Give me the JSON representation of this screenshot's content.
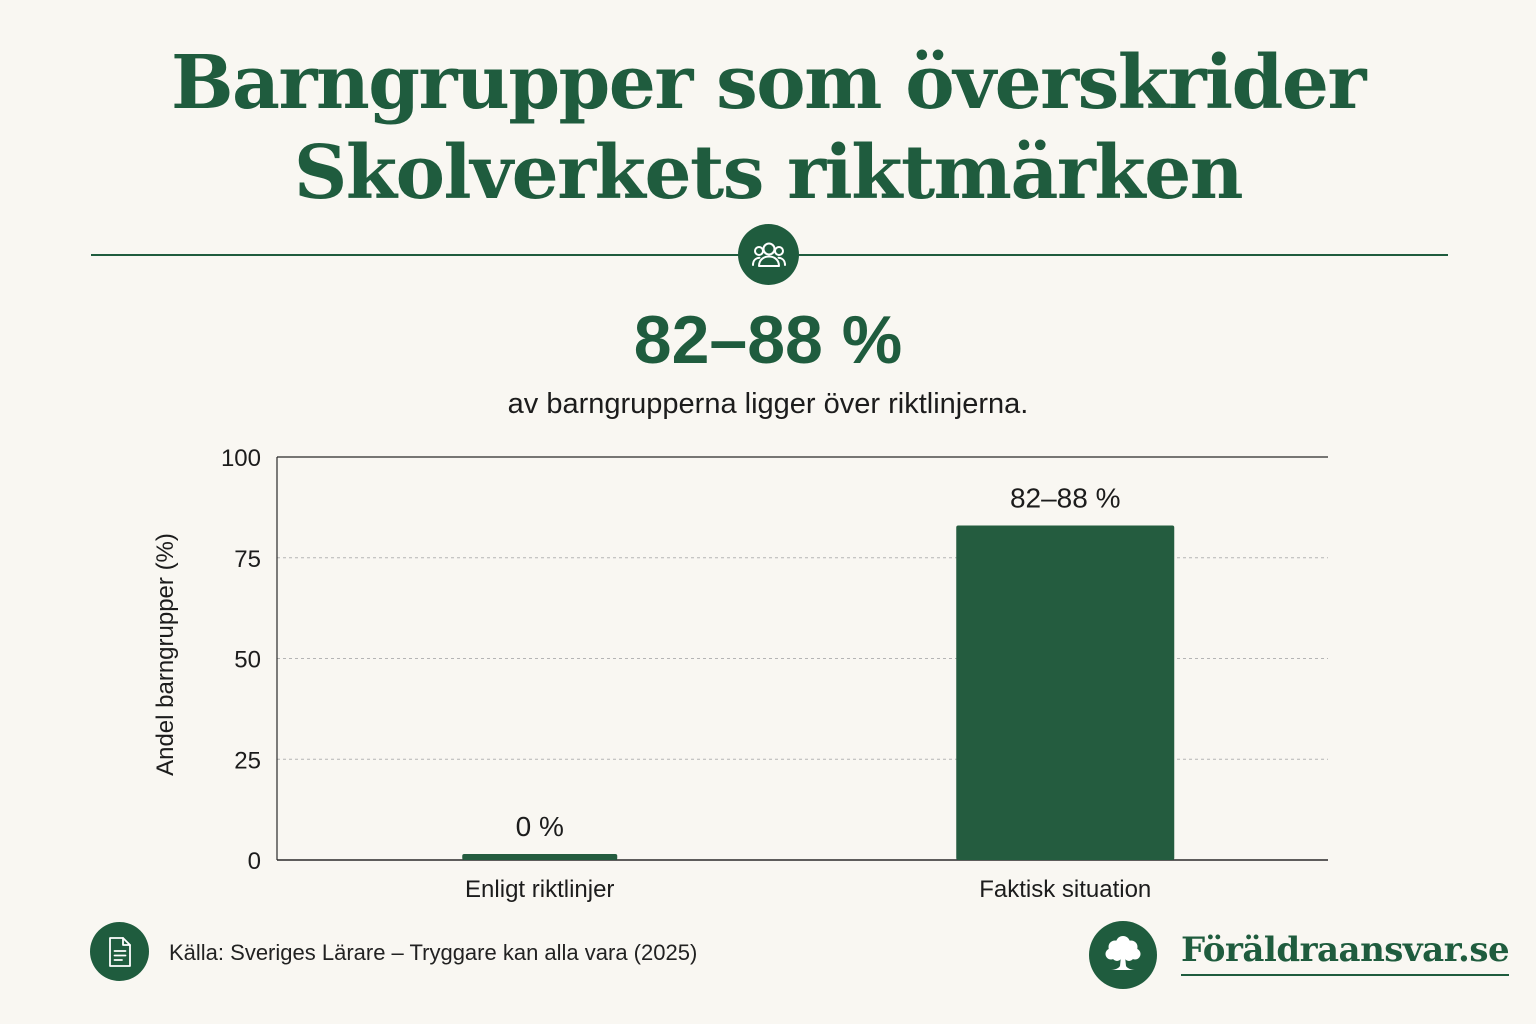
{
  "colors": {
    "brand_green": "#1f5c3e",
    "bar_green": "#245c3f",
    "background": "#f9f7f2",
    "text": "#1c1c1c",
    "grid": "#b5b5b5"
  },
  "header": {
    "title_line1": "Barngrupper som överskrider",
    "title_line2": "Skolverkets riktmärken",
    "badge_icon": "people-group-icon"
  },
  "highlight": {
    "value": "82–88 %",
    "caption": "av barngrupperna ligger över riktlinjerna."
  },
  "chart_data": {
    "type": "bar",
    "title": "",
    "xlabel": "",
    "ylabel": "Andel barngrupper (%)",
    "categories": [
      "Enligt riktlinjer",
      "Faktisk situation"
    ],
    "values": [
      0,
      83
    ],
    "value_labels": [
      "0 %",
      "82–88 %"
    ],
    "ylim": [
      0,
      100
    ],
    "yticks": [
      0,
      25,
      50,
      75,
      100
    ],
    "grid": "horizontal dashed",
    "legend": "none"
  },
  "footer": {
    "source_icon": "document-icon",
    "source": "Källa: Sveriges Lärare – Tryggare kan alla vara (2025)",
    "brand_icon": "tree-icon",
    "brand": "Föräldraansvar.se"
  }
}
